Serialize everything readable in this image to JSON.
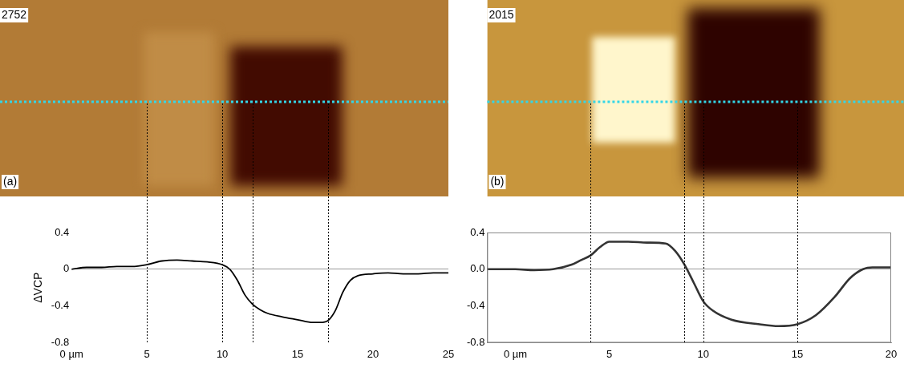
{
  "chart_data": [
    {
      "type": "line",
      "image_label": "2752",
      "panel_label": "(a)",
      "y_label": "ΔVCP",
      "color": "#000000",
      "x": [
        0,
        1,
        2,
        3,
        4,
        5,
        6,
        7,
        8,
        9,
        10,
        10.5,
        11,
        11.5,
        12,
        12.5,
        13,
        14,
        15,
        16,
        16.5,
        17,
        17.5,
        18,
        18.5,
        19,
        20,
        21,
        22,
        23,
        24,
        25
      ],
      "values": [
        0,
        0.02,
        0.02,
        0.03,
        0.03,
        0.05,
        0.09,
        0.1,
        0.09,
        0.08,
        0.05,
        0,
        -0.12,
        -0.28,
        -0.38,
        -0.44,
        -0.48,
        -0.52,
        -0.55,
        -0.58,
        -0.58,
        -0.56,
        -0.45,
        -0.25,
        -0.12,
        -0.07,
        -0.05,
        -0.04,
        -0.05,
        -0.05,
        -0.04,
        -0.04
      ],
      "xlim": [
        0,
        25
      ],
      "xticks": [
        {
          "value": 0,
          "label": "0 µm"
        },
        5,
        10,
        15,
        20,
        25
      ],
      "ylim": [
        -0.8,
        0.4
      ],
      "yticks": [
        -0.8,
        -0.4,
        0,
        0.4
      ],
      "grid": false,
      "guides": [
        5,
        10,
        12,
        17
      ]
    },
    {
      "type": "line",
      "image_label": "2015",
      "panel_label": "(b)",
      "color": "#333333",
      "x": [
        -1.5,
        0,
        1,
        2,
        3,
        3.5,
        4,
        4.5,
        5,
        6,
        7,
        8,
        8.5,
        9,
        9.5,
        10,
        10.5,
        11.5,
        13,
        14,
        15,
        16,
        17,
        17.8,
        18.5,
        19,
        20
      ],
      "values": [
        0,
        0,
        -0.01,
        0,
        0.05,
        0.1,
        0.15,
        0.24,
        0.3,
        0.3,
        0.29,
        0.28,
        0.2,
        0.05,
        -0.15,
        -0.35,
        -0.45,
        -0.55,
        -0.6,
        -0.62,
        -0.6,
        -0.5,
        -0.3,
        -0.1,
        0,
        0.02,
        0.02
      ],
      "xlim": [
        -1.5,
        20
      ],
      "xticks": [
        {
          "value": 0,
          "label": "0 µm"
        },
        5,
        10,
        15,
        20
      ],
      "ylim": [
        -0.8,
        0.4
      ],
      "yticks": [
        -0.8,
        -0.4,
        {
          "value": 0,
          "label": "0.0"
        },
        0.4
      ],
      "grid": false,
      "guides": [
        4,
        9,
        10,
        15
      ]
    }
  ]
}
